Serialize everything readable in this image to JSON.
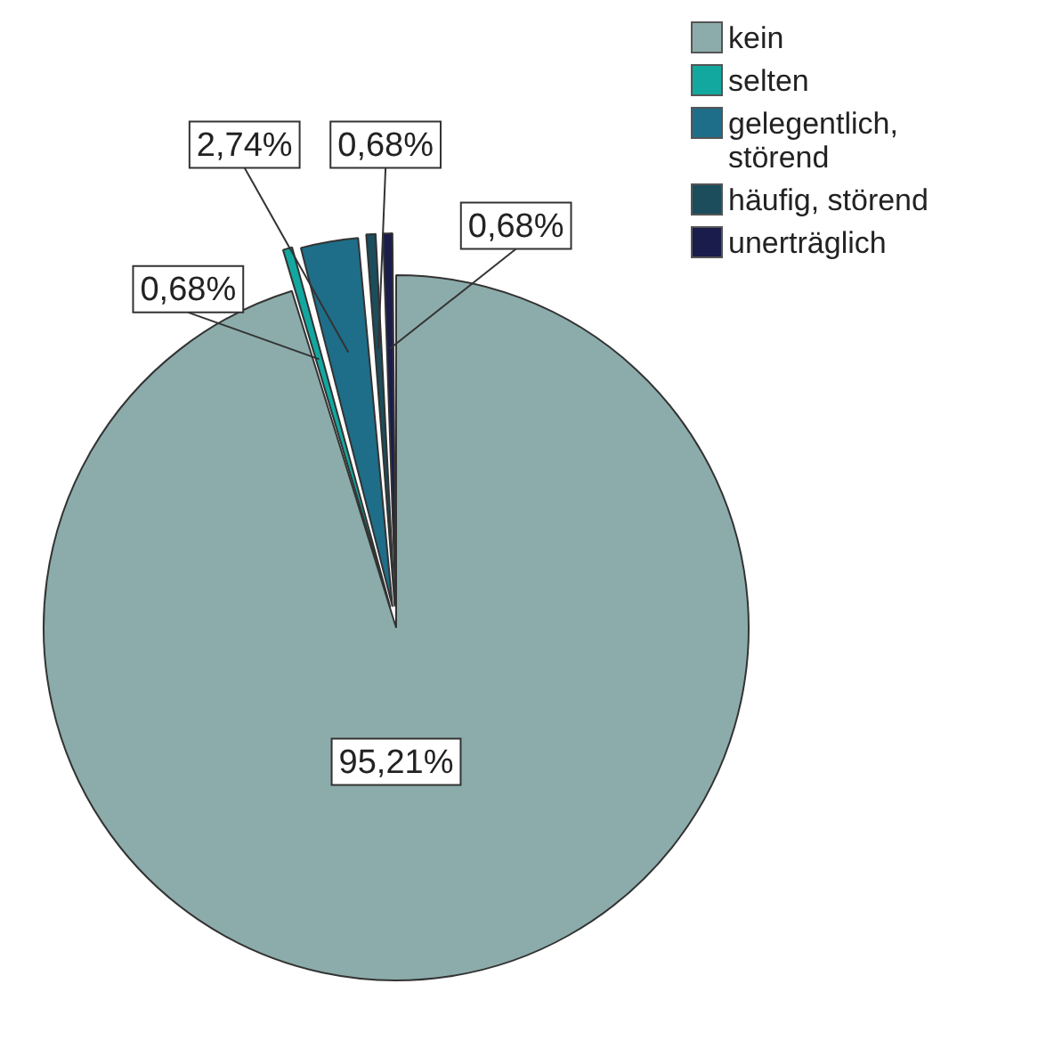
{
  "chart_data": {
    "type": "pie",
    "categories": [
      "kein",
      "selten",
      "gelegentlich, störend",
      "häufig, störend",
      "unerträglich"
    ],
    "values": [
      95.21,
      0.68,
      2.74,
      0.68,
      0.68
    ],
    "colors": [
      "#8cacab",
      "#12a8a0",
      "#1e6e89",
      "#1b4d5c",
      "#1a1c4c"
    ],
    "value_labels": [
      "95,21%",
      "0,68%",
      "2,74%",
      "0,68%",
      "0,68%"
    ],
    "legend": "top right"
  }
}
